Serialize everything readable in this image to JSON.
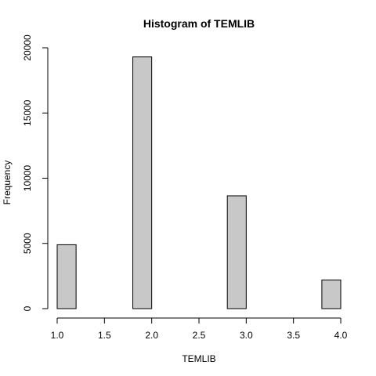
{
  "chart_data": {
    "type": "bar",
    "title": "Histogram of TEMLIB",
    "xlabel": "TEMLIB",
    "ylabel": "Frequency",
    "bin_edges": [
      1.0,
      1.2,
      1.4,
      1.6,
      1.8,
      2.0,
      2.2,
      2.4,
      2.6,
      2.8,
      3.0,
      3.2,
      3.4,
      3.6,
      3.8,
      4.0
    ],
    "values": [
      4900,
      0,
      0,
      0,
      19300,
      0,
      0,
      0,
      0,
      8650,
      0,
      0,
      0,
      0,
      2200
    ],
    "xlim": [
      1.0,
      4.0
    ],
    "ylim": [
      0,
      20000
    ],
    "x_ticks": [
      "1.0",
      "1.5",
      "2.0",
      "2.5",
      "3.0",
      "3.5",
      "4.0"
    ],
    "y_ticks": [
      "0",
      "5000",
      "10000",
      "15000",
      "20000"
    ],
    "bar_color": "#c8c8c8",
    "grid": false
  }
}
